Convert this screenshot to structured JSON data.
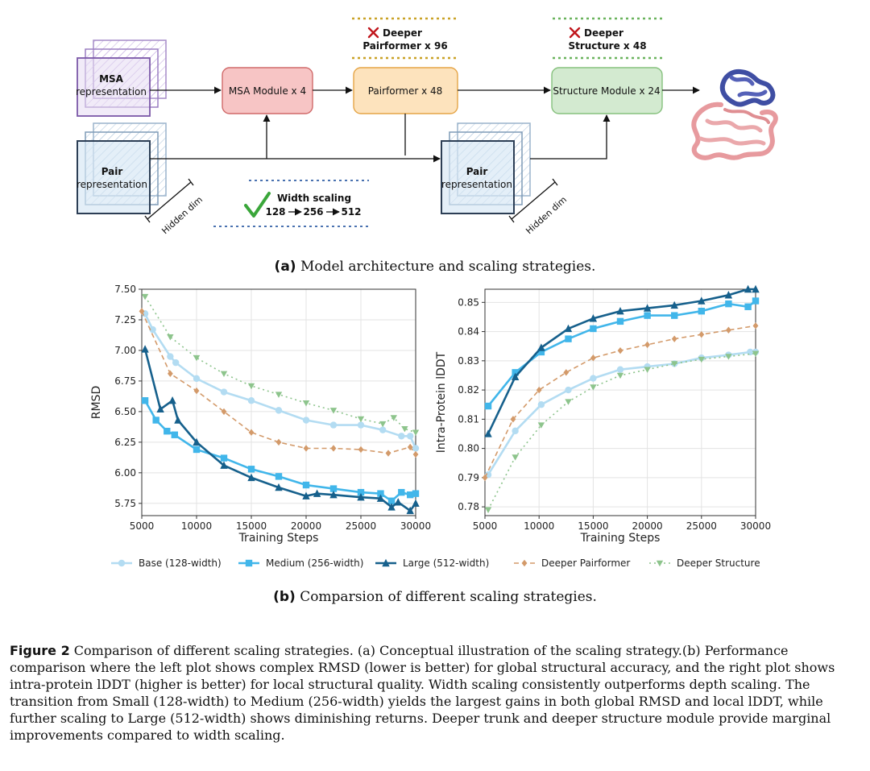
{
  "architecture": {
    "msa_rep_title": "MSA",
    "msa_rep_sub": "representation",
    "pair_rep_title": "Pair",
    "pair_rep_sub": "representation",
    "pair_rep2_title": "Pair",
    "pair_rep2_sub": "representation",
    "hidden_dim_1": "Hidden dim",
    "hidden_dim_2": "Hidden dim",
    "msa_module": "MSA Module x 4",
    "pairformer": "Pairformer x 48",
    "structure_module": "Structure Module x 24",
    "deeper_pairformer_l1": "Deeper",
    "deeper_pairformer_l2": "Pairformer x 96",
    "deeper_structure_l1": "Deeper",
    "deeper_structure_l2": "Structure x 48",
    "width_scaling_title": "Width scaling",
    "width_scaling_seq": [
      "128",
      "256",
      "512"
    ],
    "colors": {
      "msa_stack": "#9b6fc4",
      "pair_stack": "#8aa7c4",
      "msa_module_fill": "#f7c5c5",
      "pairformer_fill": "#fde3bd",
      "structure_fill": "#d3ead0",
      "deeper_pairformer_line": "#c9a227",
      "deeper_structure_line": "#6ab35d",
      "width_line": "#4a72b0",
      "cross": "#c0151b",
      "check": "#3aa63a"
    }
  },
  "subcaption_a": {
    "letter": "(a)",
    "text": "Model architecture and scaling strategies."
  },
  "subcaption_b": {
    "letter": "(b)",
    "text": "Comparsion of different scaling strategies."
  },
  "legend": [
    "Base (128-width)",
    "Medium (256-width)",
    "Large (512-width)",
    "Deeper Pairformer",
    "Deeper Structure"
  ],
  "chart_data": [
    {
      "type": "line",
      "xlabel": "Training Steps",
      "ylabel": "RMSD",
      "xlim": [
        5000,
        30000
      ],
      "ylim": [
        5.65,
        7.5
      ],
      "xticks": [
        5000,
        10000,
        15000,
        20000,
        25000,
        30000
      ],
      "yticks": [
        "5.75",
        "6.00",
        "6.25",
        "6.50",
        "6.75",
        "7.00",
        "7.25",
        "7.50"
      ],
      "series": [
        {
          "name": "Base (128-width)",
          "color": "#b3dcf2",
          "style": "solid",
          "marker": "circle",
          "x": [
            5300,
            6000,
            7600,
            8100,
            10000,
            12500,
            15000,
            17500,
            20000,
            22500,
            25000,
            27000,
            28700,
            29500,
            30000
          ],
          "y": [
            7.3,
            7.17,
            6.95,
            6.9,
            6.77,
            6.66,
            6.59,
            6.51,
            6.43,
            6.39,
            6.39,
            6.35,
            6.3,
            6.3,
            6.2
          ]
        },
        {
          "name": "Medium (256-width)",
          "color": "#41b6ea",
          "style": "solid",
          "marker": "square",
          "x": [
            5300,
            6300,
            7300,
            8000,
            10000,
            12500,
            15000,
            17500,
            20000,
            22500,
            25000,
            26800,
            27800,
            28700,
            29500,
            30000
          ],
          "y": [
            6.59,
            6.43,
            6.34,
            6.31,
            6.19,
            6.12,
            6.03,
            5.97,
            5.9,
            5.87,
            5.84,
            5.83,
            5.77,
            5.84,
            5.82,
            5.83
          ]
        },
        {
          "name": "Large (512-width)",
          "color": "#16608c",
          "style": "solid",
          "marker": "triangle",
          "x": [
            5300,
            6700,
            7800,
            8300,
            10000,
            12500,
            15000,
            17500,
            20000,
            21000,
            22500,
            25000,
            26800,
            27800,
            28400,
            29500,
            30000
          ],
          "y": [
            7.01,
            6.52,
            6.59,
            6.43,
            6.25,
            6.06,
            5.96,
            5.88,
            5.81,
            5.83,
            5.82,
            5.8,
            5.79,
            5.72,
            5.76,
            5.69,
            5.75
          ]
        },
        {
          "name": "Deeper Pairformer",
          "color": "#d39a6a",
          "style": "dashed",
          "marker": "diamond",
          "x": [
            5000,
            7600,
            10000,
            12500,
            15000,
            17500,
            20000,
            22500,
            25000,
            27500,
            29500,
            30000
          ],
          "y": [
            7.32,
            6.81,
            6.67,
            6.5,
            6.33,
            6.25,
            6.2,
            6.2,
            6.19,
            6.16,
            6.21,
            6.15
          ]
        },
        {
          "name": "Deeper Structure",
          "color": "#8dc48c",
          "style": "dotted",
          "marker": "triangle-down",
          "x": [
            5300,
            7600,
            10000,
            12500,
            15000,
            17500,
            20000,
            22500,
            25000,
            27000,
            28000,
            29000,
            30000
          ],
          "y": [
            7.44,
            7.11,
            6.94,
            6.81,
            6.71,
            6.64,
            6.57,
            6.51,
            6.44,
            6.4,
            6.45,
            6.36,
            6.33
          ]
        }
      ]
    },
    {
      "type": "line",
      "xlabel": "Training Steps",
      "ylabel": "Intra-Protein lDDT",
      "xlim": [
        5000,
        30000
      ],
      "ylim": [
        0.777,
        0.8545
      ],
      "xticks": [
        5000,
        10000,
        15000,
        20000,
        25000,
        30000
      ],
      "yticks": [
        "0.78",
        "0.79",
        "0.80",
        "0.81",
        "0.82",
        "0.83",
        "0.84",
        "0.85"
      ],
      "series": [
        {
          "name": "Base (128-width)",
          "color": "#b3dcf2",
          "style": "solid",
          "marker": "circle",
          "x": [
            5300,
            7800,
            10200,
            12700,
            15000,
            17500,
            20000,
            22500,
            25000,
            27500,
            29500,
            30000
          ],
          "y": [
            0.791,
            0.806,
            0.815,
            0.82,
            0.824,
            0.827,
            0.828,
            0.829,
            0.831,
            0.832,
            0.833,
            0.833
          ]
        },
        {
          "name": "Medium (256-width)",
          "color": "#41b6ea",
          "style": "solid",
          "marker": "square",
          "x": [
            5300,
            7800,
            10200,
            12700,
            15000,
            17500,
            20000,
            22500,
            25000,
            27500,
            29300,
            30000
          ],
          "y": [
            0.8145,
            0.826,
            0.833,
            0.8375,
            0.841,
            0.8435,
            0.8455,
            0.8455,
            0.847,
            0.8495,
            0.8485,
            0.8505
          ]
        },
        {
          "name": "Large (512-width)",
          "color": "#16608c",
          "style": "solid",
          "marker": "triangle",
          "x": [
            5300,
            7800,
            10200,
            12700,
            15000,
            17500,
            20000,
            22500,
            25000,
            27500,
            29300,
            30000
          ],
          "y": [
            0.805,
            0.8245,
            0.8345,
            0.841,
            0.8445,
            0.847,
            0.848,
            0.849,
            0.8505,
            0.8525,
            0.8545,
            0.8545
          ]
        },
        {
          "name": "Deeper Pairformer",
          "color": "#d39a6a",
          "style": "dashed",
          "marker": "diamond",
          "x": [
            5000,
            7600,
            10000,
            12500,
            15000,
            17500,
            20000,
            22500,
            25000,
            27500,
            30000
          ],
          "y": [
            0.79,
            0.81,
            0.82,
            0.826,
            0.831,
            0.8335,
            0.8355,
            0.8375,
            0.839,
            0.8405,
            0.842
          ]
        },
        {
          "name": "Deeper Structure",
          "color": "#8dc48c",
          "style": "dotted",
          "marker": "triangle-down",
          "x": [
            5300,
            7800,
            10200,
            12700,
            15000,
            17500,
            20000,
            22500,
            25000,
            27500,
            30000
          ],
          "y": [
            0.779,
            0.797,
            0.808,
            0.816,
            0.821,
            0.825,
            0.827,
            0.829,
            0.8305,
            0.8315,
            0.8325
          ]
        }
      ]
    }
  ],
  "caption": {
    "label": "Figure 2",
    "text": " Comparison of different scaling strategies. (a) Conceptual illustration of the scaling strategy.(b) Performance comparison where the left plot shows complex RMSD (lower is better) for global structural accuracy, and the right plot shows intra-protein lDDT (higher is better) for local structural quality. Width scaling consistently outperforms depth scaling. The transition from Small (128-width) to Medium (256-width) yields the largest gains in both global RMSD and local lDDT, while further scaling to Large (512-width) shows diminishing returns. Deeper trunk and deeper structure module provide marginal improvements compared to width scaling."
  }
}
